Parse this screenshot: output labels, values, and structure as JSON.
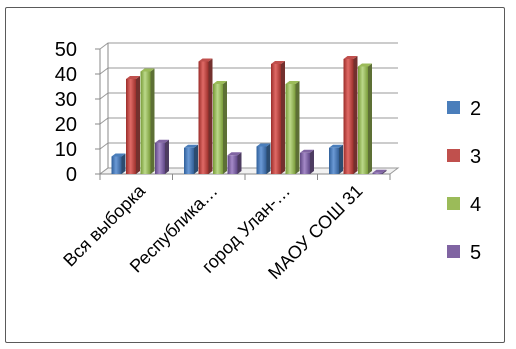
{
  "chart_data": {
    "type": "bar",
    "title": "",
    "xlabel": "",
    "ylabel": "",
    "ylim": [
      0,
      50
    ],
    "yticks": [
      0,
      10,
      20,
      30,
      40,
      50
    ],
    "grid": true,
    "legend_position": "right",
    "categories": [
      "Вся выборка",
      "Республика…",
      "город Улан-…",
      "МАОУ СОШ 31"
    ],
    "series": [
      {
        "name": "2",
        "color": "#4a7ebb",
        "values": [
          7,
          10.5,
          11,
          10.5
        ]
      },
      {
        "name": "3",
        "color": "#c0504d",
        "values": [
          38,
          45,
          44,
          46
        ]
      },
      {
        "name": "4",
        "color": "#9bbb59",
        "values": [
          41,
          36,
          36,
          43
        ]
      },
      {
        "name": "5",
        "color": "#8064a2",
        "values": [
          12.5,
          7.5,
          8.5,
          0.5
        ]
      }
    ]
  }
}
